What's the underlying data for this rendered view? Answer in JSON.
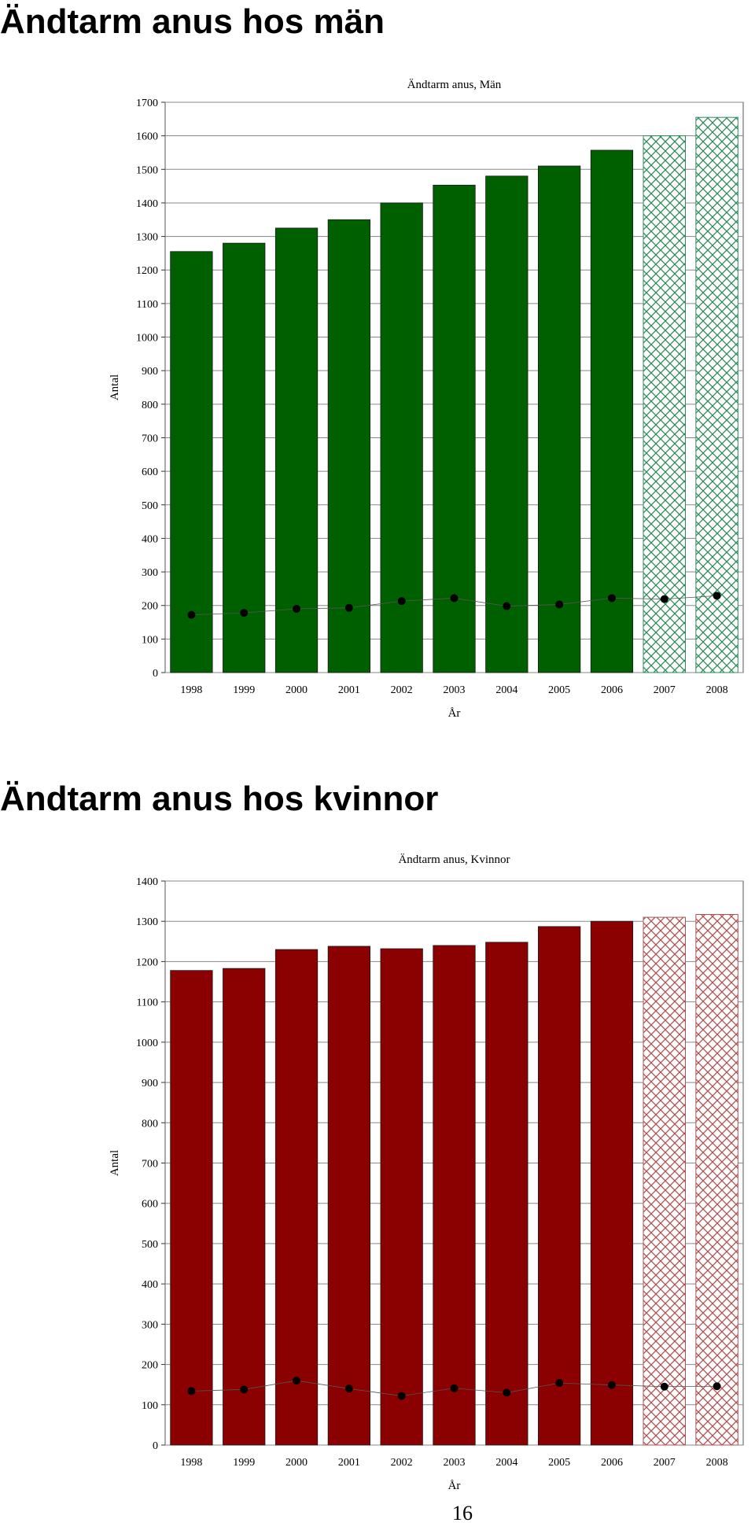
{
  "headings": {
    "men": "Ändtarm anus hos män",
    "women": "Ändtarm anus hos kvinnor"
  },
  "page_number": "16",
  "colors": {
    "men_bar": "#006000",
    "men_projection": "#2e8b57",
    "women_bar": "#8b0000",
    "women_projection": "#b05050",
    "marker": "#000000",
    "grid": "#888888"
  },
  "chart_data": [
    {
      "type": "bar",
      "title": "Ändtarm anus, Män",
      "xlabel": "År",
      "ylabel": "Antal",
      "ylim": [
        0,
        1700
      ],
      "yticks": [
        0,
        100,
        200,
        300,
        400,
        500,
        600,
        700,
        800,
        900,
        1000,
        1100,
        1200,
        1300,
        1400,
        1500,
        1600,
        1700
      ],
      "grid": true,
      "categories": [
        "1998",
        "1999",
        "2000",
        "2001",
        "2002",
        "2003",
        "2004",
        "2005",
        "2006",
        "2007",
        "2008"
      ],
      "series": [
        {
          "style": "bar",
          "values": [
            1255,
            1280,
            1325,
            1350,
            1400,
            1453,
            1480,
            1510,
            1557,
            1600,
            1655
          ],
          "projected": [
            false,
            false,
            false,
            false,
            false,
            false,
            false,
            false,
            false,
            true,
            true
          ]
        },
        {
          "style": "line-markers",
          "values": [
            172,
            178,
            190,
            193,
            213,
            222,
            198,
            203,
            222,
            219,
            229
          ]
        }
      ]
    },
    {
      "type": "bar",
      "title": "Ändtarm anus, Kvinnor",
      "xlabel": "År",
      "ylabel": "Antal",
      "ylim": [
        0,
        1400
      ],
      "yticks": [
        0,
        100,
        200,
        300,
        400,
        500,
        600,
        700,
        800,
        900,
        1000,
        1100,
        1200,
        1300,
        1400
      ],
      "grid": true,
      "categories": [
        "1998",
        "1999",
        "2000",
        "2001",
        "2002",
        "2003",
        "2004",
        "2005",
        "2006",
        "2007",
        "2008"
      ],
      "series": [
        {
          "style": "bar",
          "values": [
            1178,
            1183,
            1230,
            1238,
            1232,
            1240,
            1248,
            1287,
            1300,
            1310,
            1317
          ],
          "projected": [
            false,
            false,
            false,
            false,
            false,
            false,
            false,
            false,
            false,
            true,
            true
          ]
        },
        {
          "style": "line-markers",
          "values": [
            134,
            138,
            160,
            140,
            122,
            141,
            130,
            154,
            149,
            145,
            146
          ]
        }
      ]
    }
  ]
}
